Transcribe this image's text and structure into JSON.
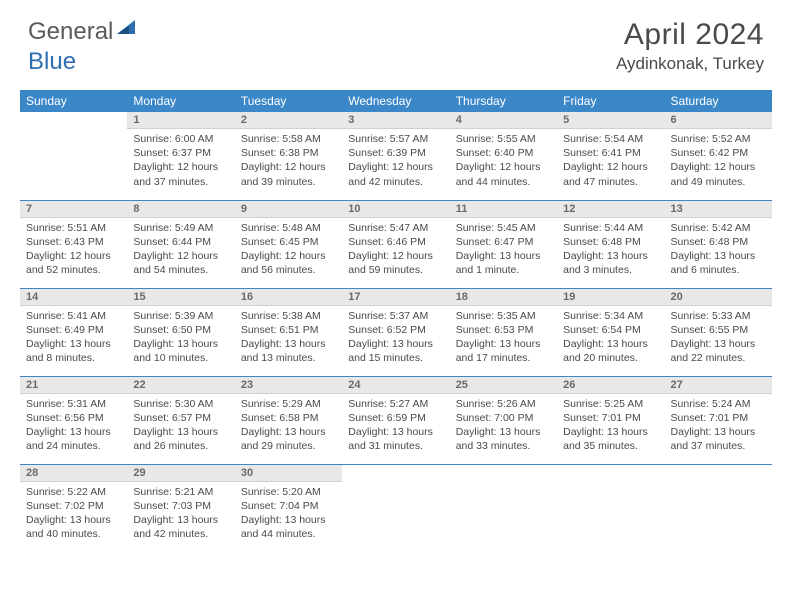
{
  "logo": {
    "part1": "General",
    "part2": "Blue"
  },
  "title": "April 2024",
  "location": "Aydinkonak, Turkey",
  "colors": {
    "header_bg": "#3b87c8",
    "header_text": "#ffffff",
    "daybar_bg": "#e8e8e8",
    "daybar_text": "#6a6a6a",
    "body_text": "#4a4a4a",
    "rule": "#3b87c8"
  },
  "weekdays": [
    "Sunday",
    "Monday",
    "Tuesday",
    "Wednesday",
    "Thursday",
    "Friday",
    "Saturday"
  ],
  "weeks": [
    [
      null,
      {
        "n": "1",
        "sr": "Sunrise: 6:00 AM",
        "ss": "Sunset: 6:37 PM",
        "dl": "Daylight: 12 hours and 37 minutes."
      },
      {
        "n": "2",
        "sr": "Sunrise: 5:58 AM",
        "ss": "Sunset: 6:38 PM",
        "dl": "Daylight: 12 hours and 39 minutes."
      },
      {
        "n": "3",
        "sr": "Sunrise: 5:57 AM",
        "ss": "Sunset: 6:39 PM",
        "dl": "Daylight: 12 hours and 42 minutes."
      },
      {
        "n": "4",
        "sr": "Sunrise: 5:55 AM",
        "ss": "Sunset: 6:40 PM",
        "dl": "Daylight: 12 hours and 44 minutes."
      },
      {
        "n": "5",
        "sr": "Sunrise: 5:54 AM",
        "ss": "Sunset: 6:41 PM",
        "dl": "Daylight: 12 hours and 47 minutes."
      },
      {
        "n": "6",
        "sr": "Sunrise: 5:52 AM",
        "ss": "Sunset: 6:42 PM",
        "dl": "Daylight: 12 hours and 49 minutes."
      }
    ],
    [
      {
        "n": "7",
        "sr": "Sunrise: 5:51 AM",
        "ss": "Sunset: 6:43 PM",
        "dl": "Daylight: 12 hours and 52 minutes."
      },
      {
        "n": "8",
        "sr": "Sunrise: 5:49 AM",
        "ss": "Sunset: 6:44 PM",
        "dl": "Daylight: 12 hours and 54 minutes."
      },
      {
        "n": "9",
        "sr": "Sunrise: 5:48 AM",
        "ss": "Sunset: 6:45 PM",
        "dl": "Daylight: 12 hours and 56 minutes."
      },
      {
        "n": "10",
        "sr": "Sunrise: 5:47 AM",
        "ss": "Sunset: 6:46 PM",
        "dl": "Daylight: 12 hours and 59 minutes."
      },
      {
        "n": "11",
        "sr": "Sunrise: 5:45 AM",
        "ss": "Sunset: 6:47 PM",
        "dl": "Daylight: 13 hours and 1 minute."
      },
      {
        "n": "12",
        "sr": "Sunrise: 5:44 AM",
        "ss": "Sunset: 6:48 PM",
        "dl": "Daylight: 13 hours and 3 minutes."
      },
      {
        "n": "13",
        "sr": "Sunrise: 5:42 AM",
        "ss": "Sunset: 6:48 PM",
        "dl": "Daylight: 13 hours and 6 minutes."
      }
    ],
    [
      {
        "n": "14",
        "sr": "Sunrise: 5:41 AM",
        "ss": "Sunset: 6:49 PM",
        "dl": "Daylight: 13 hours and 8 minutes."
      },
      {
        "n": "15",
        "sr": "Sunrise: 5:39 AM",
        "ss": "Sunset: 6:50 PM",
        "dl": "Daylight: 13 hours and 10 minutes."
      },
      {
        "n": "16",
        "sr": "Sunrise: 5:38 AM",
        "ss": "Sunset: 6:51 PM",
        "dl": "Daylight: 13 hours and 13 minutes."
      },
      {
        "n": "17",
        "sr": "Sunrise: 5:37 AM",
        "ss": "Sunset: 6:52 PM",
        "dl": "Daylight: 13 hours and 15 minutes."
      },
      {
        "n": "18",
        "sr": "Sunrise: 5:35 AM",
        "ss": "Sunset: 6:53 PM",
        "dl": "Daylight: 13 hours and 17 minutes."
      },
      {
        "n": "19",
        "sr": "Sunrise: 5:34 AM",
        "ss": "Sunset: 6:54 PM",
        "dl": "Daylight: 13 hours and 20 minutes."
      },
      {
        "n": "20",
        "sr": "Sunrise: 5:33 AM",
        "ss": "Sunset: 6:55 PM",
        "dl": "Daylight: 13 hours and 22 minutes."
      }
    ],
    [
      {
        "n": "21",
        "sr": "Sunrise: 5:31 AM",
        "ss": "Sunset: 6:56 PM",
        "dl": "Daylight: 13 hours and 24 minutes."
      },
      {
        "n": "22",
        "sr": "Sunrise: 5:30 AM",
        "ss": "Sunset: 6:57 PM",
        "dl": "Daylight: 13 hours and 26 minutes."
      },
      {
        "n": "23",
        "sr": "Sunrise: 5:29 AM",
        "ss": "Sunset: 6:58 PM",
        "dl": "Daylight: 13 hours and 29 minutes."
      },
      {
        "n": "24",
        "sr": "Sunrise: 5:27 AM",
        "ss": "Sunset: 6:59 PM",
        "dl": "Daylight: 13 hours and 31 minutes."
      },
      {
        "n": "25",
        "sr": "Sunrise: 5:26 AM",
        "ss": "Sunset: 7:00 PM",
        "dl": "Daylight: 13 hours and 33 minutes."
      },
      {
        "n": "26",
        "sr": "Sunrise: 5:25 AM",
        "ss": "Sunset: 7:01 PM",
        "dl": "Daylight: 13 hours and 35 minutes."
      },
      {
        "n": "27",
        "sr": "Sunrise: 5:24 AM",
        "ss": "Sunset: 7:01 PM",
        "dl": "Daylight: 13 hours and 37 minutes."
      }
    ],
    [
      {
        "n": "28",
        "sr": "Sunrise: 5:22 AM",
        "ss": "Sunset: 7:02 PM",
        "dl": "Daylight: 13 hours and 40 minutes."
      },
      {
        "n": "29",
        "sr": "Sunrise: 5:21 AM",
        "ss": "Sunset: 7:03 PM",
        "dl": "Daylight: 13 hours and 42 minutes."
      },
      {
        "n": "30",
        "sr": "Sunrise: 5:20 AM",
        "ss": "Sunset: 7:04 PM",
        "dl": "Daylight: 13 hours and 44 minutes."
      },
      null,
      null,
      null,
      null
    ]
  ]
}
